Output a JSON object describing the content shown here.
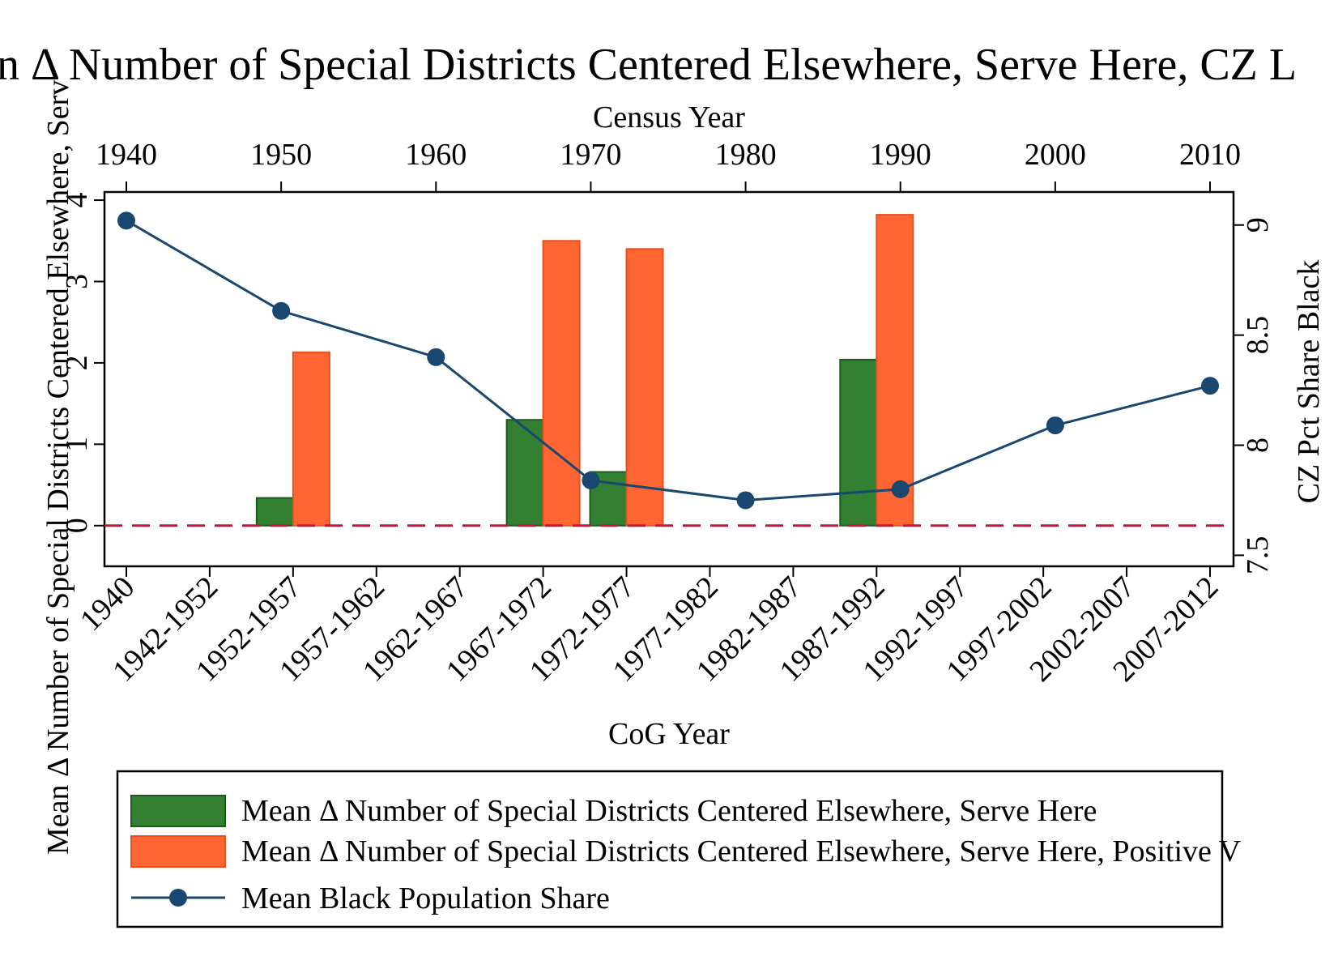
{
  "chart_data": {
    "type": "bar",
    "title": "n Δ Number of Special Districts Centered Elsewhere, Serve Here, CZ L",
    "top_axis": {
      "label": "Census Year",
      "ticks": [
        "1940",
        "1950",
        "1960",
        "1970",
        "1980",
        "1990",
        "2000",
        "2010"
      ]
    },
    "xlabel": "CoG Year",
    "categories": [
      "1940",
      "1942-1952",
      "1952-1957",
      "1957-1962",
      "1962-1967",
      "1967-1972",
      "1972-1977",
      "1977-1982",
      "1982-1987",
      "1987-1992",
      "1992-1997",
      "1997-2002",
      "2002-2007",
      "2007-2012"
    ],
    "ylabel_left": "Mean Δ Number of Special Districts Centered Elsewhere, Serv",
    "ylim_left": [
      -0.5,
      4.1
    ],
    "yticks_left": [
      "0",
      "1",
      "2",
      "3",
      "4"
    ],
    "ylabel_right": "CZ Pct Share Black",
    "ylim_right": [
      7.45,
      9.15
    ],
    "yticks_right": [
      "7.5",
      "8",
      "8.5",
      "9"
    ],
    "series": [
      {
        "name": "Mean Δ Number of Special Districts Centered Elsewhere, Serve Here",
        "kind": "bar",
        "axis": "left",
        "color": "#338033",
        "values": [
          null,
          null,
          0.34,
          null,
          null,
          1.3,
          0.66,
          null,
          null,
          2.04,
          null,
          null,
          null,
          null
        ]
      },
      {
        "name": "Mean Δ Number of Special Districts Centered Elsewhere, Serve Here, Positive V",
        "kind": "bar",
        "axis": "left",
        "color": "#ff6633",
        "values": [
          null,
          null,
          2.13,
          null,
          null,
          3.5,
          3.4,
          null,
          null,
          3.82,
          null,
          null,
          null,
          null
        ]
      },
      {
        "name": "Mean Black Population Share",
        "kind": "line",
        "axis": "right",
        "color": "#1a476f",
        "x": [
          1940,
          1950,
          1960,
          1970,
          1980,
          1990,
          2000,
          2010
        ],
        "values": [
          9.02,
          8.61,
          8.4,
          7.84,
          7.75,
          7.8,
          8.09,
          8.27
        ]
      }
    ],
    "reference_line": {
      "axis": "left",
      "value": 0,
      "color": "#c8143c",
      "style": "dashed"
    },
    "legend": {
      "placement": "bottom"
    },
    "grid": false
  }
}
